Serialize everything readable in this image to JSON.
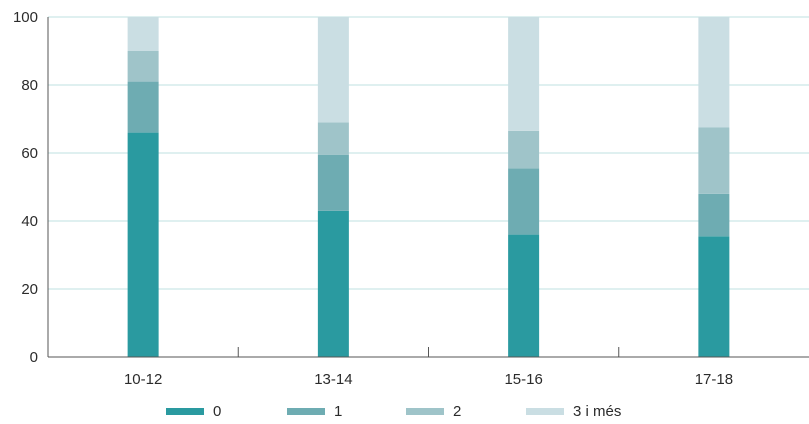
{
  "chart_data": {
    "type": "bar",
    "stacked": true,
    "categories": [
      "10-12",
      "13-14",
      "15-16",
      "17-18"
    ],
    "series": [
      {
        "name": "0",
        "color": "#2a9aa0",
        "values": [
          66,
          43,
          36,
          35.5
        ]
      },
      {
        "name": "1",
        "color": "#6eacb2",
        "values": [
          15,
          16.5,
          19.5,
          12.5
        ]
      },
      {
        "name": "2",
        "color": "#9fc4c9",
        "values": [
          9,
          9.5,
          11,
          19.5
        ]
      },
      {
        "name": "3 i més",
        "color": "#cadee3",
        "values": [
          10,
          31,
          33.5,
          32.5
        ]
      }
    ],
    "ylim": [
      0,
      100
    ],
    "yticks": [
      0,
      20,
      40,
      60,
      80,
      100
    ],
    "grid": true,
    "legend_position": "bottom",
    "title": "",
    "xlabel": "",
    "ylabel": ""
  }
}
